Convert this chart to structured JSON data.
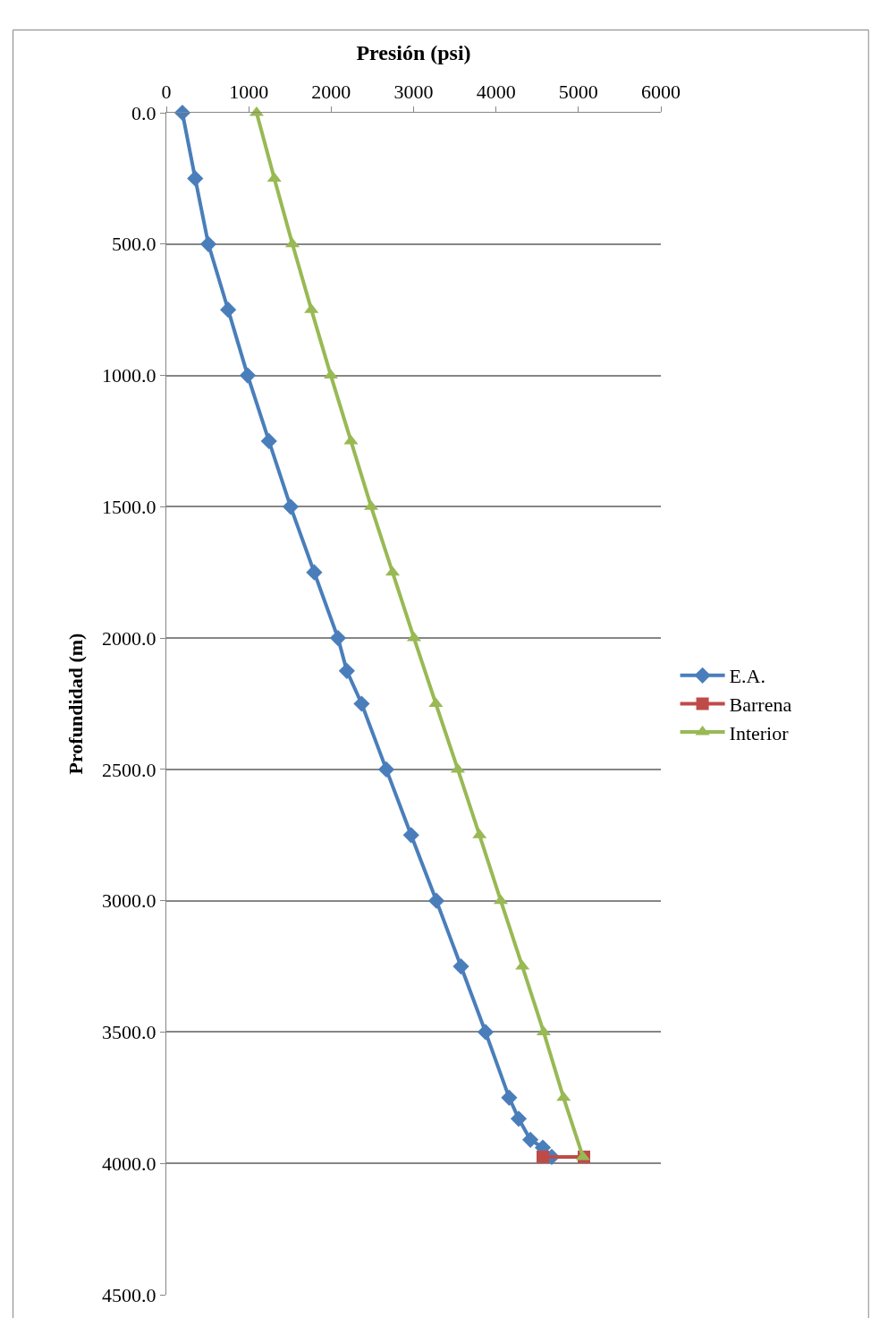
{
  "chart_data": {
    "type": "line",
    "xlabel": "Presión (psi)",
    "ylabel": "Profundidad (m)",
    "xlim": [
      0,
      6000
    ],
    "xticks": [
      0,
      1000,
      2000,
      3000,
      4000,
      5000,
      6000
    ],
    "ylim": [
      4500,
      0
    ],
    "yticks": [
      {
        "value": 0,
        "label": "0.0"
      },
      {
        "value": 500,
        "label": "500.0"
      },
      {
        "value": 1000,
        "label": "1000.0"
      },
      {
        "value": 1500,
        "label": "1500.0"
      },
      {
        "value": 2000,
        "label": "2000.0"
      },
      {
        "value": 2500,
        "label": "2500.0"
      },
      {
        "value": 3000,
        "label": "3000.0"
      },
      {
        "value": 3500,
        "label": "3500.0"
      },
      {
        "value": 4000,
        "label": "4000.0"
      },
      {
        "value": 4500,
        "label": "4500.0"
      }
    ],
    "grid": "y",
    "legend": "right",
    "line_style": "solid",
    "series": [
      {
        "name": "E.A.",
        "color": "#4a7ebb",
        "marker": "diamond",
        "x": [
          195,
          350,
          510,
          750,
          987,
          1245,
          1508,
          1795,
          2083,
          2190,
          2370,
          2669,
          2970,
          3277,
          3575,
          3873,
          4160,
          4275,
          4417,
          4568,
          4676
        ],
        "values": [
          0,
          250,
          500,
          750,
          1000,
          1250,
          1500,
          1750,
          2000,
          2125,
          2250,
          2500,
          2750,
          3000,
          3250,
          3500,
          3750,
          3830,
          3910,
          3940,
          3975
        ]
      },
      {
        "name": "Barrena",
        "color": "#be4b48",
        "marker": "square",
        "x": [
          4568,
          5067
        ],
        "values": [
          3975,
          3975
        ]
      },
      {
        "name": "Interior",
        "color": "#98b954",
        "marker": "triangle",
        "x": [
          1095,
          1310,
          1530,
          1760,
          1996,
          2240,
          2485,
          2745,
          3005,
          3270,
          3537,
          3800,
          4058,
          4320,
          4578,
          4820,
          5055
        ],
        "values": [
          0,
          250,
          500,
          750,
          1000,
          1250,
          1500,
          1750,
          2000,
          2250,
          2500,
          2750,
          3000,
          3250,
          3500,
          3750,
          3975
        ]
      }
    ]
  }
}
